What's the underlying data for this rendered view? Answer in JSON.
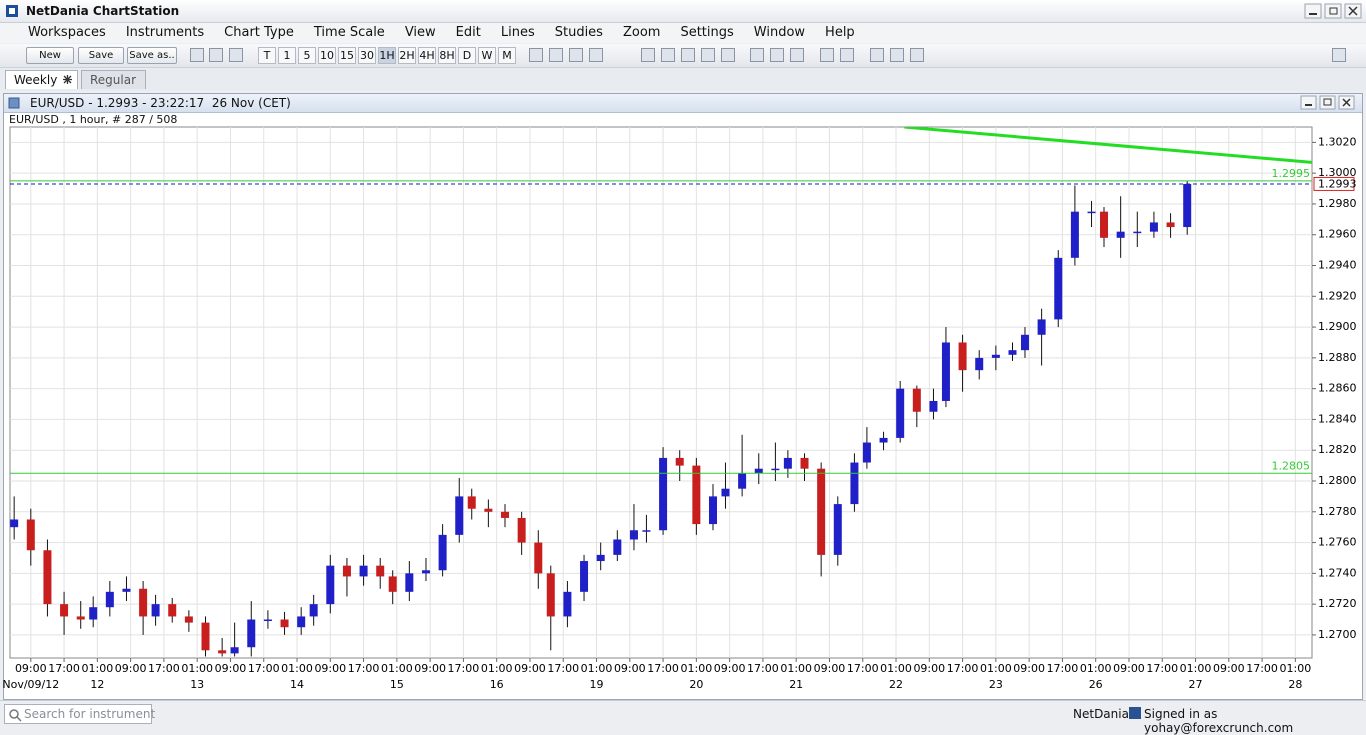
{
  "window": {
    "title": "NetDania ChartStation"
  },
  "menu": [
    "Workspaces",
    "Instruments",
    "Chart Type",
    "Time Scale",
    "View",
    "Edit",
    "Lines",
    "Studies",
    "Zoom",
    "Settings",
    "Window",
    "Help"
  ],
  "toolbar": {
    "buttons": [
      "New",
      "Save",
      "Save as.."
    ],
    "timeframes": [
      "T",
      "1",
      "5",
      "10",
      "15",
      "30",
      "1H",
      "2H",
      "4H",
      "8H",
      "D",
      "W",
      "M"
    ]
  },
  "tabs": [
    "Weekly",
    "Regular"
  ],
  "chart_window": {
    "title": "EUR/USD - 1.2993 - 23:22:17  26 Nov (CET)",
    "info": "EUR/USD , 1 hour, # 287 / 508"
  },
  "chart_data": {
    "type": "candlestick",
    "up_color": "#2020c8",
    "down_color": "#c81e1e",
    "x": [
      -4,
      0,
      4,
      8,
      12,
      15,
      19,
      23,
      27,
      30,
      34,
      38,
      42,
      46,
      49,
      53,
      57,
      61,
      65,
      68,
      72,
      76,
      80,
      84,
      87,
      91,
      95,
      99,
      103,
      106,
      110,
      114,
      118,
      122,
      125,
      129,
      133,
      137,
      141,
      145,
      148,
      152,
      156,
      160,
      164,
      167,
      171,
      175,
      179,
      182,
      186,
      190,
      194,
      198,
      201,
      205,
      209,
      213,
      217,
      220,
      224,
      228,
      232,
      236,
      239,
      243,
      247,
      251,
      255,
      258,
      262,
      266,
      270,
      274,
      278
    ],
    "open": [
      1.277,
      1.2775,
      1.2755,
      1.272,
      1.2712,
      1.271,
      1.2718,
      1.2728,
      1.273,
      1.2712,
      1.272,
      1.2712,
      1.2708,
      1.269,
      1.2688,
      1.2692,
      1.271,
      1.271,
      1.2705,
      1.2712,
      1.272,
      1.2745,
      1.2738,
      1.2745,
      1.2738,
      1.2728,
      1.274,
      1.2742,
      1.2765,
      1.279,
      1.2782,
      1.278,
      1.2776,
      1.276,
      1.274,
      1.2712,
      1.2728,
      1.2748,
      1.2752,
      1.2762,
      1.2768,
      1.2768,
      1.2815,
      1.281,
      1.2772,
      1.279,
      1.2795,
      1.2805,
      1.2808,
      1.2808,
      1.2815,
      1.2808,
      1.2752,
      1.2785,
      1.2812,
      1.2825,
      1.2828,
      1.286,
      1.2845,
      1.2852,
      1.289,
      1.2872,
      1.288,
      1.2882,
      1.2885,
      1.2895,
      1.2905,
      1.2945,
      1.2975,
      1.2975,
      1.2958,
      1.2962,
      1.2962,
      1.2968,
      1.2965
    ],
    "high": [
      1.279,
      1.2782,
      1.2762,
      1.2728,
      1.2722,
      1.2725,
      1.2735,
      1.2738,
      1.2735,
      1.2726,
      1.2724,
      1.2716,
      1.2712,
      1.2698,
      1.2708,
      1.2722,
      1.2716,
      1.2715,
      1.2718,
      1.2726,
      1.2752,
      1.275,
      1.2752,
      1.275,
      1.2742,
      1.2748,
      1.275,
      1.2772,
      1.2802,
      1.2795,
      1.2788,
      1.2785,
      1.278,
      1.2768,
      1.2745,
      1.2735,
      1.2752,
      1.276,
      1.2768,
      1.2785,
      1.2778,
      1.2822,
      1.282,
      1.2815,
      1.2798,
      1.2812,
      1.283,
      1.2818,
      1.2825,
      1.282,
      1.2818,
      1.2812,
      1.279,
      1.2818,
      1.2835,
      1.2832,
      1.2865,
      1.2862,
      1.286,
      1.29,
      1.2895,
      1.2885,
      1.2888,
      1.289,
      1.29,
      1.2912,
      1.295,
      1.2992,
      1.2982,
      1.2978,
      1.2985,
      1.2975,
      1.2975,
      1.2974,
      1.2995
    ],
    "low": [
      1.2762,
      1.2745,
      1.2712,
      1.27,
      1.2704,
      1.2705,
      1.2712,
      1.2722,
      1.27,
      1.2706,
      1.2708,
      1.2702,
      1.2686,
      1.2686,
      1.2686,
      1.2686,
      1.2704,
      1.27,
      1.27,
      1.2706,
      1.2714,
      1.2725,
      1.2732,
      1.273,
      1.272,
      1.2722,
      1.2735,
      1.2738,
      1.276,
      1.2775,
      1.277,
      1.277,
      1.2752,
      1.273,
      1.269,
      1.2705,
      1.2722,
      1.2742,
      1.2748,
      1.2755,
      1.276,
      1.2765,
      1.28,
      1.2765,
      1.2768,
      1.2782,
      1.279,
      1.2798,
      1.28,
      1.2802,
      1.28,
      1.2738,
      1.2745,
      1.278,
      1.2808,
      1.282,
      1.2825,
      1.2835,
      1.284,
      1.2848,
      1.2858,
      1.2866,
      1.2872,
      1.2878,
      1.288,
      1.2875,
      1.29,
      1.294,
      1.2965,
      1.2952,
      1.2945,
      1.2952,
      1.2958,
      1.2958,
      1.296
    ],
    "close": [
      1.2775,
      1.2755,
      1.272,
      1.2712,
      1.271,
      1.2718,
      1.2728,
      1.273,
      1.2712,
      1.272,
      1.2712,
      1.2708,
      1.269,
      1.2688,
      1.2692,
      1.271,
      1.271,
      1.2705,
      1.2712,
      1.272,
      1.2745,
      1.2738,
      1.2745,
      1.2738,
      1.2728,
      1.274,
      1.2742,
      1.2765,
      1.279,
      1.2782,
      1.278,
      1.2776,
      1.276,
      1.274,
      1.2712,
      1.2728,
      1.2748,
      1.2752,
      1.2762,
      1.2768,
      1.2768,
      1.2815,
      1.281,
      1.2772,
      1.279,
      1.2795,
      1.2805,
      1.2808,
      1.2808,
      1.2815,
      1.2808,
      1.2752,
      1.2785,
      1.2812,
      1.2825,
      1.2828,
      1.286,
      1.2845,
      1.2852,
      1.289,
      1.2872,
      1.288,
      1.2882,
      1.2885,
      1.2895,
      1.2905,
      1.2945,
      1.2975,
      1.2975,
      1.2958,
      1.2962,
      1.2962,
      1.2968,
      1.2965,
      1.2993
    ],
    "xlim": [
      -5,
      308
    ],
    "ylim": [
      1.2685,
      1.303
    ],
    "yticks": [
      {
        "value": 1.27,
        "label": "1.2700"
      },
      {
        "value": 1.272,
        "label": "1.2720"
      },
      {
        "value": 1.274,
        "label": "1.2740"
      },
      {
        "value": 1.276,
        "label": "1.2760"
      },
      {
        "value": 1.278,
        "label": "1.2780"
      },
      {
        "value": 1.28,
        "label": "1.2800"
      },
      {
        "value": 1.282,
        "label": "1.2820"
      },
      {
        "value": 1.284,
        "label": "1.2840"
      },
      {
        "value": 1.286,
        "label": "1.2860"
      },
      {
        "value": 1.288,
        "label": "1.2880"
      },
      {
        "value": 1.29,
        "label": "1.2900"
      },
      {
        "value": 1.292,
        "label": "1.2920"
      },
      {
        "value": 1.294,
        "label": "1.2940"
      },
      {
        "value": 1.296,
        "label": "1.2960"
      },
      {
        "value": 1.298,
        "label": "1.2980"
      },
      {
        "value": 1.3,
        "label": "1.3000"
      },
      {
        "value": 1.302,
        "label": "1.3020"
      }
    ],
    "xticks": [
      {
        "value": 0,
        "label": "09:00"
      },
      {
        "value": 8,
        "label": "17:00"
      },
      {
        "value": 16,
        "label": "01:00"
      },
      {
        "value": 24,
        "label": "09:00"
      },
      {
        "value": 32,
        "label": "17:00"
      },
      {
        "value": 40,
        "label": "01:00"
      },
      {
        "value": 48,
        "label": "09:00"
      },
      {
        "value": 56,
        "label": "17:00"
      },
      {
        "value": 64,
        "label": "01:00"
      },
      {
        "value": 72,
        "label": "09:00"
      },
      {
        "value": 80,
        "label": "17:00"
      },
      {
        "value": 88,
        "label": "01:00"
      },
      {
        "value": 96,
        "label": "09:00"
      },
      {
        "value": 104,
        "label": "17:00"
      },
      {
        "value": 112,
        "label": "01:00"
      },
      {
        "value": 120,
        "label": "09:00"
      },
      {
        "value": 128,
        "label": "17:00"
      },
      {
        "value": 136,
        "label": "01:00"
      },
      {
        "value": 144,
        "label": "09:00"
      },
      {
        "value": 152,
        "label": "17:00"
      },
      {
        "value": 160,
        "label": "01:00"
      },
      {
        "value": 168,
        "label": "09:00"
      },
      {
        "value": 176,
        "label": "17:00"
      },
      {
        "value": 184,
        "label": "01:00"
      },
      {
        "value": 192,
        "label": "09:00"
      },
      {
        "value": 200,
        "label": "17:00"
      },
      {
        "value": 208,
        "label": "01:00"
      },
      {
        "value": 216,
        "label": "09:00"
      },
      {
        "value": 224,
        "label": "17:00"
      },
      {
        "value": 232,
        "label": "01:00"
      },
      {
        "value": 240,
        "label": "09:00"
      },
      {
        "value": 248,
        "label": "17:00"
      },
      {
        "value": 256,
        "label": "01:00"
      },
      {
        "value": 264,
        "label": "09:00"
      },
      {
        "value": 272,
        "label": "17:00"
      },
      {
        "value": 280,
        "label": "01:00"
      },
      {
        "value": 288,
        "label": "09:00"
      },
      {
        "value": 296,
        "label": "17:00"
      },
      {
        "value": 304,
        "label": "01:00"
      }
    ],
    "date_ticks": [
      {
        "value": 0,
        "label": "Nov/09/12"
      },
      {
        "value": 16,
        "label": "12"
      },
      {
        "value": 40,
        "label": "13"
      },
      {
        "value": 64,
        "label": "14"
      },
      {
        "value": 88,
        "label": "15"
      },
      {
        "value": 112,
        "label": "16"
      },
      {
        "value": 136,
        "label": "19"
      },
      {
        "value": 160,
        "label": "20"
      },
      {
        "value": 184,
        "label": "21"
      },
      {
        "value": 208,
        "label": "22"
      },
      {
        "value": 232,
        "label": "23"
      },
      {
        "value": 256,
        "label": "26"
      },
      {
        "value": 280,
        "label": "27"
      },
      {
        "value": 304,
        "label": "28"
      }
    ],
    "grid": true,
    "hlines": [
      {
        "value": 1.2995,
        "color": "#33cc33"
      },
      {
        "value": 1.2805,
        "color": "#33cc33"
      }
    ],
    "price_line": {
      "value": 1.2993,
      "color": "#1a1acc"
    },
    "trendline": {
      "x": [
        210,
        308
      ],
      "y": [
        1.303,
        1.3007
      ],
      "color": "#22dd22"
    }
  },
  "status": {
    "search_placeholder": "Search for instrument",
    "brand": "NetDania",
    "signed_in": "Signed in as yohay@forexcrunch.com"
  }
}
